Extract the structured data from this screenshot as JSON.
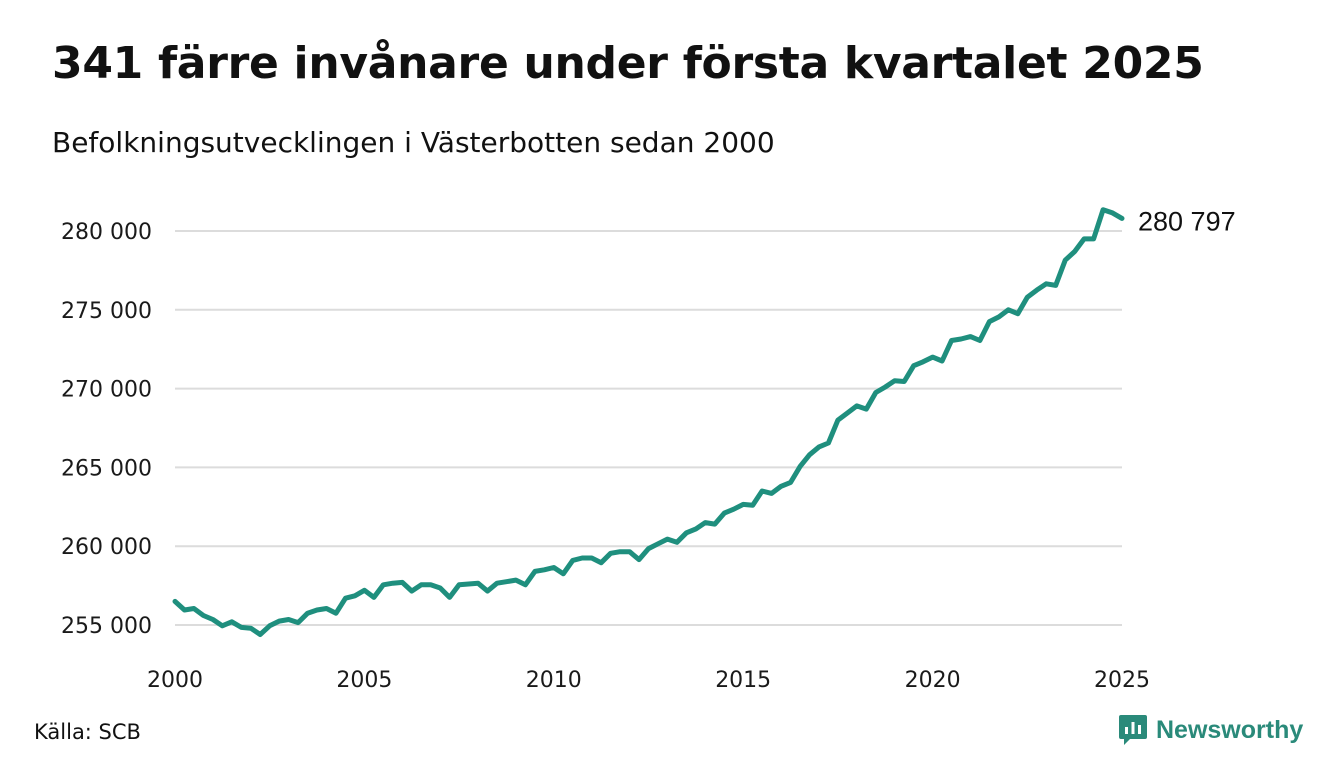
{
  "title": "341 färre invånare under första kvartalet 2025",
  "subtitle": "Befolkningsutvecklingen i Västerbotten sedan 2000",
  "source": "Källa: SCB",
  "brand": "Newsworthy",
  "colors": {
    "line": "#1f8f7e",
    "grid": "#dcdcdc",
    "brand": "#2a8a7a"
  },
  "chart_data": {
    "type": "line",
    "title": "341 färre invånare under första kvartalet 2025",
    "subtitle": "Befolkningsutvecklingen i Västerbotten sedan 2000",
    "xlabel": "",
    "ylabel": "",
    "xlim": [
      2000,
      2025
    ],
    "ylim": [
      253500,
      282000
    ],
    "xticks": [
      2000,
      2005,
      2010,
      2015,
      2020,
      2025
    ],
    "xtick_labels": [
      "2000",
      "2005",
      "2010",
      "2015",
      "2020",
      "2025"
    ],
    "yticks": [
      255000,
      260000,
      265000,
      270000,
      275000,
      280000
    ],
    "ytick_labels": [
      "255 000",
      "260 000",
      "265 000",
      "270 000",
      "275 000",
      "280 000"
    ],
    "grid": "horizontal",
    "end_label": "280 797",
    "series": [
      {
        "x": [
          2000.0,
          2000.25,
          2000.5,
          2000.75,
          2001.0,
          2001.25,
          2001.5,
          2001.75,
          2002.0,
          2002.25,
          2002.5,
          2002.75,
          2003.0,
          2003.25,
          2003.5,
          2003.75,
          2004.0,
          2004.25,
          2004.5,
          2004.75,
          2005.0,
          2005.25,
          2005.5,
          2005.75,
          2006.0,
          2006.25,
          2006.5,
          2006.75,
          2007.0,
          2007.25,
          2007.5,
          2007.75,
          2008.0,
          2008.25,
          2008.5,
          2008.75,
          2009.0,
          2009.25,
          2009.5,
          2009.75,
          2010.0,
          2010.25,
          2010.5,
          2010.75,
          2011.0,
          2011.25,
          2011.5,
          2011.75,
          2012.0,
          2012.25,
          2012.5,
          2012.75,
          2013.0,
          2013.25,
          2013.5,
          2013.75,
          2014.0,
          2014.25,
          2014.5,
          2014.75,
          2015.0,
          2015.25,
          2015.5,
          2015.75,
          2016.0,
          2016.25,
          2016.5,
          2016.75,
          2017.0,
          2017.25,
          2017.5,
          2017.75,
          2018.0,
          2018.25,
          2018.5,
          2018.75,
          2019.0,
          2019.25,
          2019.5,
          2019.75,
          2020.0,
          2020.25,
          2020.5,
          2020.75,
          2021.0,
          2021.25,
          2021.5,
          2021.75,
          2022.0,
          2022.25,
          2022.5,
          2022.75,
          2023.0,
          2023.25,
          2023.5,
          2023.75,
          2024.0,
          2024.25,
          2024.5,
          2024.75,
          2025.0
        ],
        "y": [
          256500,
          255950,
          256050,
          255600,
          255350,
          254950,
          255200,
          254850,
          254800,
          254400,
          254950,
          255250,
          255350,
          255150,
          255750,
          255950,
          256050,
          255750,
          256700,
          256850,
          257200,
          256750,
          257550,
          257650,
          257700,
          257150,
          257550,
          257550,
          257350,
          256750,
          257550,
          257600,
          257650,
          257150,
          257650,
          257750,
          257850,
          257550,
          258400,
          258500,
          258650,
          258250,
          259100,
          259250,
          259250,
          258950,
          259550,
          259650,
          259650,
          259150,
          259850,
          260150,
          260450,
          260250,
          260850,
          261100,
          261500,
          261400,
          262100,
          262350,
          262650,
          262600,
          263500,
          263350,
          263800,
          264050,
          265050,
          265800,
          266300,
          266550,
          268000,
          268450,
          268900,
          268700,
          269750,
          270100,
          270500,
          270450,
          271450,
          271700,
          272000,
          271750,
          273050,
          273150,
          273300,
          273050,
          274250,
          274550,
          275000,
          274750,
          275800,
          276250,
          276650,
          276550,
          278150,
          278700,
          279500,
          279500,
          281350,
          281150,
          280797
        ]
      }
    ]
  }
}
